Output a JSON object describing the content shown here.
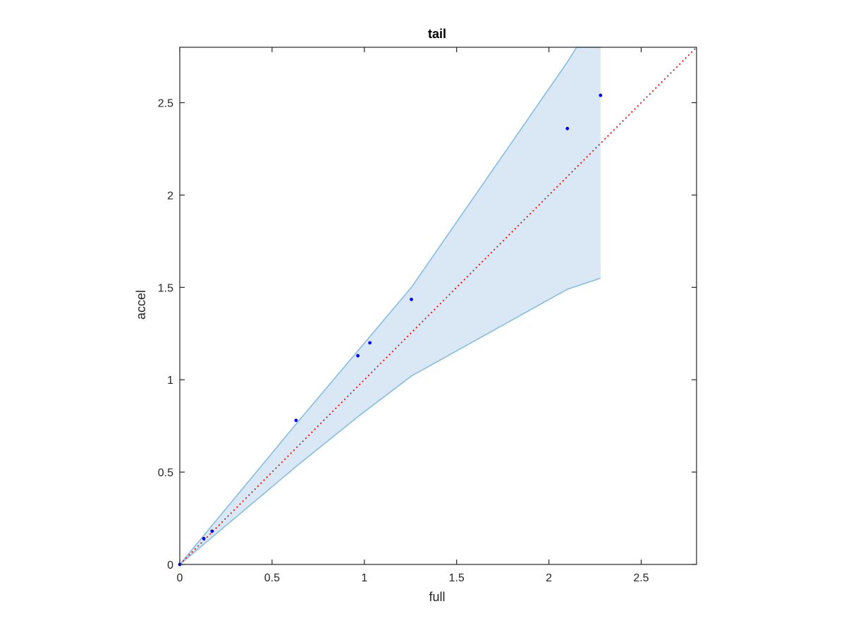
{
  "chart_data": {
    "type": "scatter",
    "title": "tail",
    "xlabel": "full",
    "ylabel": "accel",
    "xlim": [
      0,
      2.8
    ],
    "ylim": [
      0,
      2.8
    ],
    "xticks": [
      0,
      0.5,
      1,
      1.5,
      2,
      2.5
    ],
    "yticks": [
      0,
      0.5,
      1,
      1.5,
      2,
      2.5
    ],
    "xtick_labels": [
      "0",
      "0.5",
      "1",
      "1.5",
      "2",
      "2.5"
    ],
    "ytick_labels": [
      "0",
      "0.5",
      "1",
      "1.5",
      "2",
      "2.5"
    ],
    "grid": false,
    "points": {
      "x": [
        0.0,
        0.13,
        0.175,
        0.63,
        0.965,
        1.03,
        1.255,
        2.1,
        2.28
      ],
      "y": [
        0.0,
        0.14,
        0.18,
        0.78,
        1.13,
        1.2,
        1.435,
        2.36,
        2.54
      ],
      "color": "#0000ff"
    },
    "band": {
      "upper": {
        "x": [
          0,
          0.63,
          1.255,
          2.1,
          2.15,
          2.28
        ],
        "y": [
          0,
          0.76,
          1.5,
          2.72,
          2.8,
          2.8
        ]
      },
      "lower": {
        "x": [
          0,
          0.63,
          0.965,
          1.255,
          2.1,
          2.28
        ],
        "y": [
          0,
          0.53,
          0.8,
          1.02,
          1.49,
          1.55
        ]
      },
      "fill": "#d9e8f4",
      "edge": "#86bde0"
    },
    "reference_line": {
      "x": [
        0,
        2.8
      ],
      "y": [
        0,
        2.8
      ],
      "color": "#ff0000",
      "style": "dotted"
    }
  }
}
